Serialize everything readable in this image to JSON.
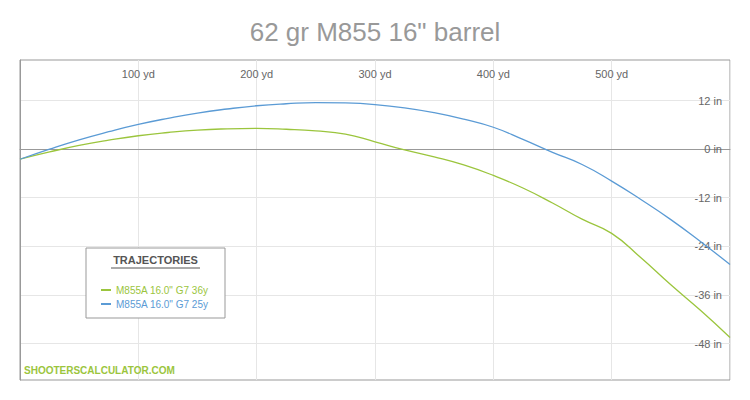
{
  "chart_data": {
    "type": "line",
    "title": "62 gr M855 16\" barrel",
    "legend_title": "TRAJECTORIES",
    "source": "SHOOTERSCALCULATOR.COM",
    "x": [
      0,
      25,
      50,
      75,
      100,
      125,
      150,
      175,
      200,
      225,
      250,
      275,
      300,
      325,
      350,
      375,
      400,
      425,
      450,
      475,
      500,
      525,
      550,
      575,
      600
    ],
    "series": [
      {
        "name": "M855A 16.0\" G7 36y",
        "color": "#9bc53d",
        "values": [
          -2.5,
          -0.7,
          0.9,
          2.2,
          3.3,
          4.1,
          4.7,
          5.0,
          5.1,
          4.9,
          4.5,
          3.7,
          1.8,
          -0.2,
          -1.9,
          -3.9,
          -6.5,
          -9.6,
          -13.3,
          -17.3,
          -20.8,
          -26.9,
          -33.5,
          -39.8,
          -46.5
        ]
      },
      {
        "name": "M855A 16.0\" G7 25y",
        "color": "#5b9bd5",
        "values": [
          -2.5,
          0,
          2.3,
          4.3,
          6.1,
          7.6,
          8.9,
          9.9,
          10.7,
          11.2,
          11.5,
          11.4,
          11.0,
          10.2,
          9.0,
          7.4,
          5.4,
          2.4,
          -0.8,
          -3.8,
          -7.9,
          -12.5,
          -17.4,
          -22.8,
          -28.5
        ]
      }
    ],
    "xlim": [
      0,
      600
    ],
    "xticks": [
      {
        "value": 100,
        "label": "100 yd"
      },
      {
        "value": 200,
        "label": "200 yd"
      },
      {
        "value": 300,
        "label": "300 yd"
      },
      {
        "value": 400,
        "label": "400 yd"
      },
      {
        "value": 500,
        "label": "500 yd"
      }
    ],
    "ylim": [
      -57,
      22
    ],
    "yticks": [
      {
        "value": 12,
        "label": "12 in"
      },
      {
        "value": 0,
        "label": "0 in"
      },
      {
        "value": -12,
        "label": "-12 in"
      },
      {
        "value": -24,
        "label": "-24 in"
      },
      {
        "value": -36,
        "label": "-36 in"
      },
      {
        "value": -48,
        "label": "-48 in"
      }
    ],
    "grid": true,
    "legend": "lower left"
  }
}
